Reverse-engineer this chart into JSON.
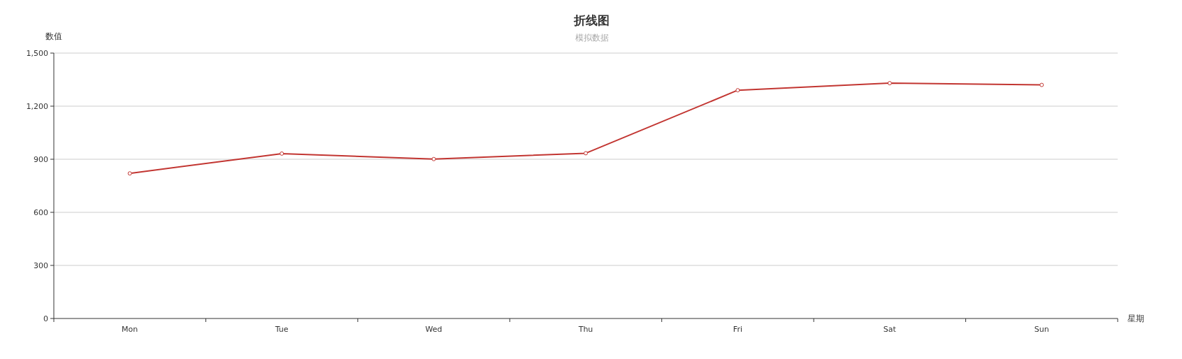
{
  "chart_data": {
    "type": "line",
    "title": "折线图",
    "subtitle": "模拟数据",
    "xlabel": "星期",
    "ylabel": "数值",
    "categories": [
      "Mon",
      "Tue",
      "Wed",
      "Thu",
      "Fri",
      "Sat",
      "Sun"
    ],
    "series": [
      {
        "color": "#c23531",
        "values": [
          820,
          932,
          901,
          934,
          1290,
          1330,
          1320
        ]
      }
    ],
    "ylim": [
      0,
      1500
    ],
    "yticks": [
      0,
      300,
      600,
      900,
      {
        "value": 1200,
        "label": "1,200"
      },
      {
        "value": 1500,
        "label": "1,500"
      }
    ],
    "grid": "y",
    "marker": "circle"
  }
}
